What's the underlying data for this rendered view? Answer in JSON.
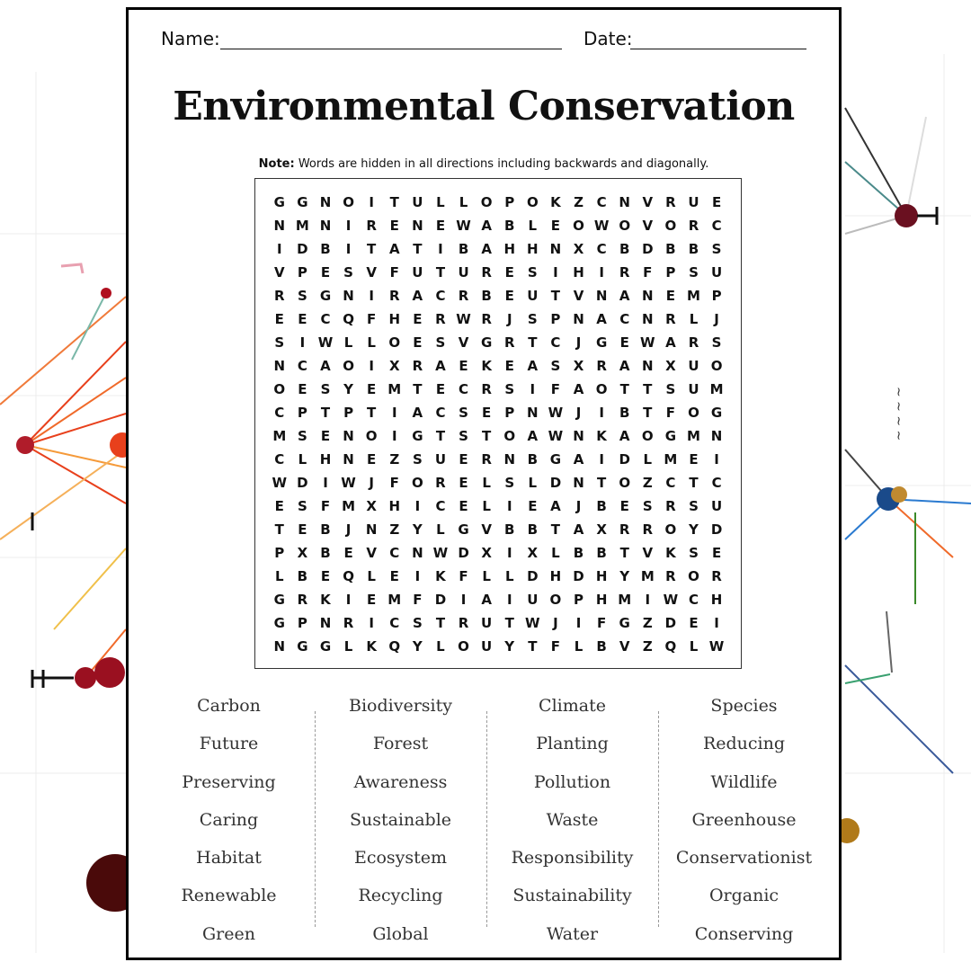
{
  "header": {
    "name_label": "Name:",
    "date_label": "Date:"
  },
  "title": "Environmental Conservation",
  "note": {
    "bold": "Note:",
    "text": " Words are hidden in all directions including backwards and diagonally."
  },
  "grid_rows": [
    "GGNOITULLOPOKZCNVRUE",
    "NMNIRENEWABLEOWOVORC",
    "IDBITATIBAHHNXCBDBBS",
    "VPESVFUTURESIHIRFPSU",
    "RSGNIRACRBEUTVNANEMP",
    "EECQFHERWRJSPNACNRLJ",
    "SIWLLOESVGRTCJGEWARS",
    "NCAOIXRAEKEASXRANXUO",
    "OESYEMTECRSIFAOTTSUM",
    "CPTPTIACSEPNWJIBTFOG",
    "MSENOIGTSTOAWNKAOGMN",
    "CLHNEZSUERNBGAIDLMEI",
    "WDIWJFORELSLDNTOZCTC",
    "ESFMXHICELIEAJBESRSU",
    "TEBJNZYLGVBBTAXRROYD",
    "PXBEVCNWDXIXLBBTVKSE",
    "LBEQLEIKFLLDHDHYMROR",
    "GRKIEMFDIAIUOPHMIWCH",
    "GPNRICSTRUTWJIFGZDEI",
    "NGGLKQYLOUYTFLBVZQLW"
  ],
  "word_columns": [
    [
      "Carbon",
      "Future",
      "Preserving",
      "Caring",
      "Habitat",
      "Renewable",
      "Green"
    ],
    [
      "Biodiversity",
      "Forest",
      "Awareness",
      "Sustainable",
      "Ecosystem",
      "Recycling",
      "Global"
    ],
    [
      "Climate",
      "Planting",
      "Pollution",
      "Waste",
      "Responsibility",
      "Sustainability",
      "Water"
    ],
    [
      "Species",
      "Reducing",
      "Wildlife",
      "Greenhouse",
      "Conservationist",
      "Organic",
      "Conserving"
    ]
  ],
  "colors": {
    "ink": "#111111",
    "word_ink": "#333333",
    "accent_red": "#e8401c",
    "accent_dark": "#4a0a0a"
  }
}
